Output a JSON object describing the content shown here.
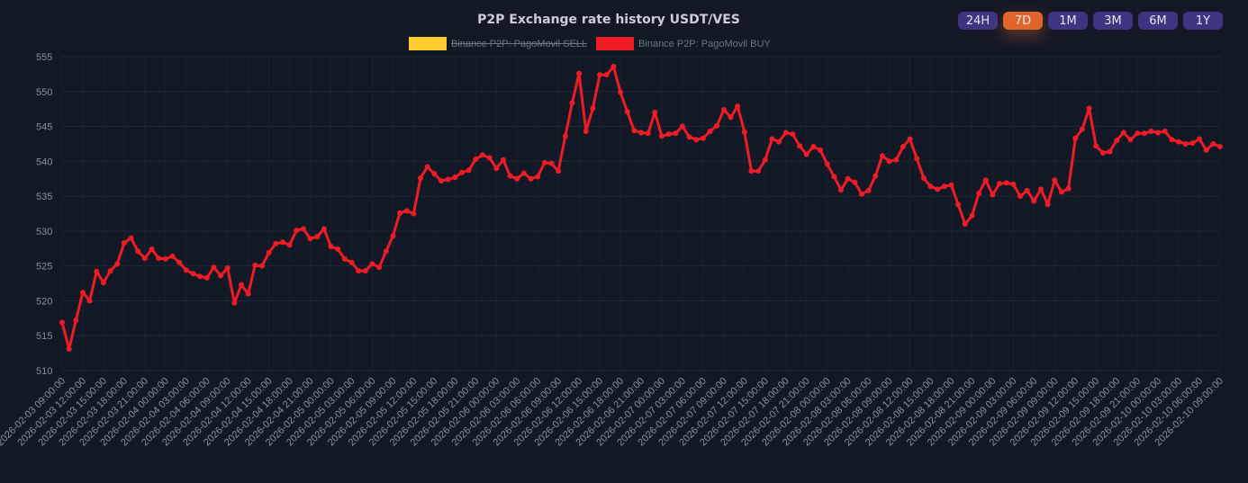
{
  "chart_data": {
    "type": "line",
    "title": "P2P Exchange rate history USDT/VES",
    "xlabel": "",
    "ylabel": "",
    "ylim": [
      510,
      555
    ],
    "y_ticks": [
      510,
      515,
      520,
      525,
      530,
      535,
      540,
      545,
      550,
      555
    ],
    "grid": true,
    "legend_position": "top",
    "x_start": "2026-02-03 09:00:00",
    "x_end": "2026-02-10 09:00:00",
    "x_tick_labels": [
      "2026-02-03 09:00:00",
      "2026-02-03 12:00:00",
      "2026-02-03 15:00:00",
      "2026-02-03 18:00:00",
      "2026-02-03 21:00:00",
      "2026-02-04 00:00:00",
      "2026-02-04 03:00:00",
      "2026-02-04 06:00:00",
      "2026-02-04 09:00:00",
      "2026-02-04 12:00:00",
      "2026-02-04 15:00:00",
      "2026-02-04 18:00:00",
      "2026-02-04 21:00:00",
      "2026-02-05 00:00:00",
      "2026-02-05 03:00:00",
      "2026-02-05 06:00:00",
      "2026-02-05 09:00:00",
      "2026-02-05 12:00:00",
      "2026-02-05 15:00:00",
      "2026-02-05 18:00:00",
      "2026-02-05 21:00:00",
      "2026-02-06 00:00:00",
      "2026-02-06 03:00:00",
      "2026-02-06 06:00:00",
      "2026-02-06 09:00:00",
      "2026-02-06 12:00:00",
      "2026-02-06 15:00:00",
      "2026-02-06 18:00:00",
      "2026-02-06 21:00:00",
      "2026-02-07 00:00:00",
      "2026-02-07 03:00:00",
      "2026-02-07 06:00:00",
      "2026-02-07 09:00:00",
      "2026-02-07 12:00:00",
      "2026-02-07 15:00:00",
      "2026-02-07 18:00:00",
      "2026-02-07 21:00:00",
      "2026-02-08 00:00:00",
      "2026-02-08 03:00:00",
      "2026-02-08 06:00:00",
      "2026-02-08 09:00:00",
      "2026-02-08 12:00:00",
      "2026-02-08 15:00:00",
      "2026-02-08 18:00:00",
      "2026-02-08 21:00:00",
      "2026-02-09 00:00:00",
      "2026-02-09 03:00:00",
      "2026-02-09 06:00:00",
      "2026-02-09 09:00:00",
      "2026-02-09 12:00:00",
      "2026-02-09 15:00:00",
      "2026-02-09 18:00:00",
      "2026-02-09 21:00:00",
      "2026-02-10 00:00:00",
      "2026-02-10 03:00:00",
      "2026-02-10 06:00:00",
      "2026-02-10 09:00:00"
    ],
    "series": [
      {
        "name": "Binance P2P: PagoMovil SELL",
        "color": "#ffcb2f",
        "hidden": true,
        "values": []
      },
      {
        "name": "Binance P2P: PagoMovil BUY",
        "color": "#ee1c25",
        "hidden": false,
        "values": [
          516.9,
          513.1,
          517.2,
          521.2,
          520.0,
          524.2,
          522.6,
          524.3,
          525.3,
          528.3,
          529.0,
          527.1,
          526.1,
          527.4,
          526.1,
          526.0,
          526.4,
          525.5,
          524.4,
          523.9,
          523.5,
          523.3,
          524.8,
          523.6,
          524.7,
          519.7,
          522.3,
          521.0,
          525.1,
          525.0,
          526.9,
          528.2,
          528.4,
          528.0,
          530.1,
          530.3,
          528.9,
          529.2,
          530.3,
          527.8,
          527.4,
          526.0,
          525.5,
          524.3,
          524.3,
          525.3,
          524.8,
          527.1,
          529.3,
          532.6,
          532.9,
          532.5,
          537.6,
          539.2,
          538.2,
          537.2,
          537.4,
          537.7,
          538.4,
          538.7,
          540.3,
          540.9,
          540.5,
          539.0,
          540.2,
          537.9,
          537.5,
          538.3,
          537.5,
          537.8,
          539.8,
          539.7,
          538.6,
          543.6,
          548.4,
          552.6,
          544.3,
          547.6,
          552.4,
          552.4,
          553.6,
          549.9,
          547.1,
          544.4,
          544.1,
          544.0,
          547.0,
          543.6,
          543.9,
          544.0,
          545.0,
          543.5,
          543.1,
          543.3,
          544.3,
          545.1,
          547.4,
          546.3,
          547.9,
          544.2,
          538.6,
          538.6,
          540.2,
          543.2,
          542.8,
          544.1,
          543.9,
          542.2,
          541.0,
          542.1,
          541.6,
          539.6,
          537.8,
          535.9,
          537.5,
          537.0,
          535.3,
          535.8,
          537.9,
          540.8,
          540.0,
          540.2,
          542.1,
          543.2,
          540.4,
          537.6,
          536.4,
          536.0,
          536.4,
          536.6,
          533.8,
          531.0,
          532.2,
          535.4,
          537.3,
          535.2,
          536.8,
          536.9,
          536.7,
          535.0,
          535.8,
          534.3,
          536.0,
          533.8,
          537.3,
          535.6,
          536.1,
          543.3,
          544.6,
          547.6,
          542.2,
          541.2,
          541.4,
          543.0,
          544.1,
          543.1,
          544.0,
          544.0,
          544.3,
          544.1,
          544.3,
          543.1,
          542.8,
          542.5,
          542.6,
          543.2,
          541.6,
          542.5,
          542.1
        ]
      }
    ]
  },
  "range_buttons": [
    {
      "label": "24H",
      "active": false
    },
    {
      "label": "7D",
      "active": true
    },
    {
      "label": "1M",
      "active": false
    },
    {
      "label": "3M",
      "active": false
    },
    {
      "label": "6M",
      "active": false
    },
    {
      "label": "1Y",
      "active": false
    }
  ],
  "colors": {
    "background": "#121826",
    "accent": "#e0652c",
    "button": "#3c3582",
    "grid": "#1f2634",
    "axis_text": "#8a909b"
  }
}
